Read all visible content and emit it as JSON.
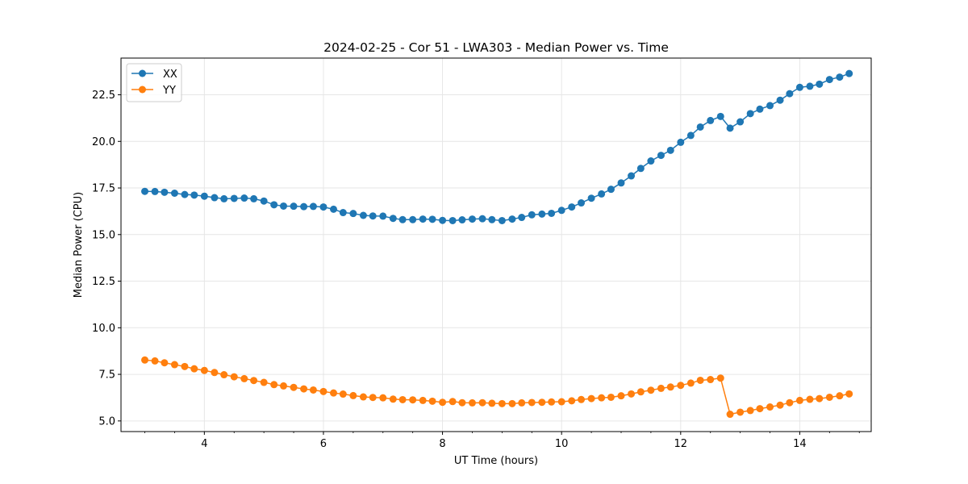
{
  "chart_data": {
    "type": "line",
    "title": "2024-02-25 - Cor 51 - LWA303 - Median Power vs. Time",
    "xlabel": "UT Time (hours)",
    "ylabel": "Median Power (CPU)",
    "xlim": [
      2.6,
      15.2
    ],
    "ylim": [
      4.43,
      24.47
    ],
    "xticks": [
      4,
      6,
      8,
      10,
      12,
      14
    ],
    "xtick_labels": [
      "4",
      "6",
      "8",
      "10",
      "12",
      "14"
    ],
    "yticks": [
      5.0,
      7.5,
      10.0,
      12.5,
      15.0,
      17.5,
      20.0,
      22.5
    ],
    "ytick_labels": [
      "5.0",
      "7.5",
      "10.0",
      "12.5",
      "15.0",
      "17.5",
      "20.0",
      "22.5"
    ],
    "grid": true,
    "legend_position": "top-left",
    "x": [
      3.0,
      3.17,
      3.33,
      3.5,
      3.67,
      3.83,
      4.0,
      4.17,
      4.33,
      4.5,
      4.67,
      4.83,
      5.0,
      5.17,
      5.33,
      5.5,
      5.67,
      5.83,
      6.0,
      6.17,
      6.33,
      6.5,
      6.67,
      6.83,
      7.0,
      7.17,
      7.33,
      7.5,
      7.67,
      7.83,
      8.0,
      8.17,
      8.33,
      8.5,
      8.67,
      8.83,
      9.0,
      9.17,
      9.33,
      9.5,
      9.67,
      9.83,
      10.0,
      10.17,
      10.33,
      10.5,
      10.67,
      10.83,
      11.0,
      11.17,
      11.33,
      11.5,
      11.67,
      11.83,
      12.0,
      12.17,
      12.33,
      12.5,
      12.67,
      12.83,
      13.0,
      13.17,
      13.33,
      13.5,
      13.67,
      13.83,
      14.0,
      14.17,
      14.33,
      14.5,
      14.67,
      14.83
    ],
    "series": [
      {
        "name": "XX",
        "color": "#1f77b4",
        "values": [
          17.32,
          17.31,
          17.27,
          17.22,
          17.15,
          17.12,
          17.06,
          16.98,
          16.92,
          16.94,
          16.96,
          16.92,
          16.8,
          16.6,
          16.53,
          16.52,
          16.5,
          16.51,
          16.48,
          16.36,
          16.18,
          16.13,
          16.03,
          16.0,
          15.99,
          15.87,
          15.8,
          15.8,
          15.83,
          15.82,
          15.76,
          15.75,
          15.79,
          15.83,
          15.85,
          15.8,
          15.75,
          15.83,
          15.92,
          16.06,
          16.1,
          16.14,
          16.3,
          16.48,
          16.7,
          16.95,
          17.18,
          17.43,
          17.77,
          18.15,
          18.55,
          18.95,
          19.25,
          19.52,
          19.95,
          20.32,
          20.77,
          21.12,
          21.34,
          20.71,
          21.05,
          21.49,
          21.73,
          21.92,
          22.21,
          22.56,
          22.9,
          22.96,
          23.07,
          23.32,
          23.45,
          23.64
        ]
      },
      {
        "name": "YY",
        "color": "#ff7f0e",
        "values": [
          8.27,
          8.22,
          8.12,
          8.02,
          7.92,
          7.8,
          7.71,
          7.6,
          7.48,
          7.37,
          7.27,
          7.17,
          7.07,
          6.95,
          6.88,
          6.8,
          6.72,
          6.66,
          6.58,
          6.5,
          6.44,
          6.36,
          6.29,
          6.26,
          6.24,
          6.17,
          6.14,
          6.13,
          6.1,
          6.06,
          6.0,
          6.04,
          5.98,
          5.97,
          5.98,
          5.95,
          5.93,
          5.93,
          5.97,
          5.99,
          6.0,
          6.02,
          6.03,
          6.08,
          6.15,
          6.2,
          6.24,
          6.27,
          6.35,
          6.45,
          6.56,
          6.65,
          6.75,
          6.82,
          6.91,
          7.03,
          7.18,
          7.22,
          7.3,
          5.36,
          5.47,
          5.56,
          5.66,
          5.75,
          5.85,
          5.98,
          6.1,
          6.16,
          6.2,
          6.27,
          6.35,
          6.45
        ]
      }
    ]
  }
}
